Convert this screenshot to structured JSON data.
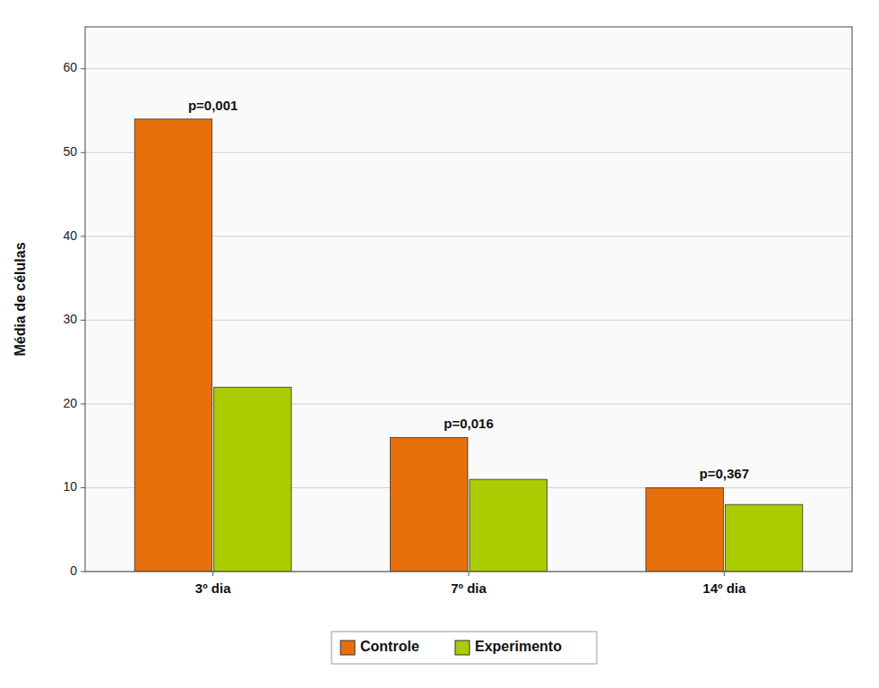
{
  "chart_data": {
    "type": "bar",
    "ylabel": "Média de células",
    "categories": [
      "3º dia",
      "7º dia",
      "14º dia"
    ],
    "series": [
      {
        "name": "Controle",
        "color": "#E8700A",
        "values": [
          54,
          16,
          10
        ]
      },
      {
        "name": "Experimento",
        "color": "#AACC00",
        "values": [
          22,
          11,
          8
        ]
      }
    ],
    "annotations": [
      "p=0,001",
      "p=0,016",
      "p=0,367"
    ],
    "ylim": [
      0,
      65
    ],
    "yticks": [
      0,
      10,
      20,
      30,
      40,
      50,
      60
    ],
    "grid": true,
    "legend": "bottom"
  }
}
